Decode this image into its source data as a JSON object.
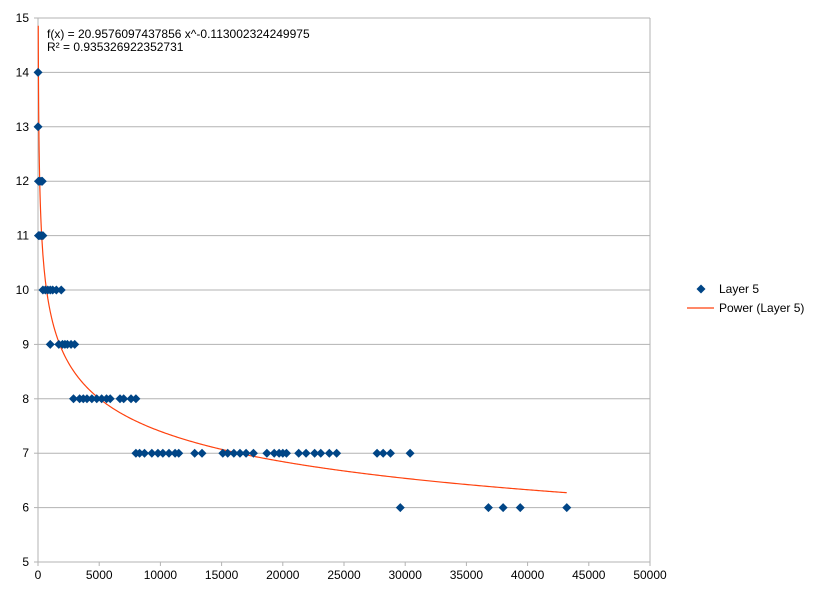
{
  "chart_data": {
    "type": "scatter",
    "xlim": [
      0,
      50000
    ],
    "ylim": [
      5,
      15
    ],
    "x_ticks": [
      0,
      5000,
      10000,
      15000,
      20000,
      25000,
      30000,
      35000,
      40000,
      45000,
      50000
    ],
    "y_ticks": [
      5,
      6,
      7,
      8,
      9,
      10,
      11,
      12,
      13,
      14,
      15
    ],
    "grid": true,
    "legend_position": "right",
    "equation_lines": [
      "f(x) = 20.9576097437856 x^-0.113002324249975",
      "R² = 0.935326922352731"
    ],
    "series": [
      {
        "name": "Layer 5",
        "marker": "diamond",
        "color": "#004586",
        "points": [
          [
            5,
            14
          ],
          [
            5,
            13
          ],
          [
            40,
            12
          ],
          [
            150,
            12
          ],
          [
            260,
            12
          ],
          [
            350,
            12
          ],
          [
            40,
            11
          ],
          [
            150,
            11
          ],
          [
            260,
            11
          ],
          [
            400,
            11
          ],
          [
            400,
            10
          ],
          [
            600,
            10
          ],
          [
            800,
            10
          ],
          [
            1000,
            10
          ],
          [
            1200,
            10
          ],
          [
            1500,
            10
          ],
          [
            1900,
            10
          ],
          [
            1000,
            9
          ],
          [
            1700,
            9
          ],
          [
            2000,
            9
          ],
          [
            2200,
            9
          ],
          [
            2400,
            9
          ],
          [
            2700,
            9
          ],
          [
            3000,
            9
          ],
          [
            2900,
            8
          ],
          [
            3400,
            8
          ],
          [
            3700,
            8
          ],
          [
            4000,
            8
          ],
          [
            4400,
            8
          ],
          [
            4800,
            8
          ],
          [
            5200,
            8
          ],
          [
            5600,
            8
          ],
          [
            5900,
            8
          ],
          [
            6700,
            8
          ],
          [
            7000,
            8
          ],
          [
            7600,
            8
          ],
          [
            8000,
            8
          ],
          [
            8000,
            7
          ],
          [
            8300,
            7
          ],
          [
            8700,
            7
          ],
          [
            9300,
            7
          ],
          [
            9800,
            7
          ],
          [
            10200,
            7
          ],
          [
            10700,
            7
          ],
          [
            11200,
            7
          ],
          [
            11500,
            7
          ],
          [
            12800,
            7
          ],
          [
            13400,
            7
          ],
          [
            15100,
            7
          ],
          [
            15500,
            7
          ],
          [
            16000,
            7
          ],
          [
            16500,
            7
          ],
          [
            17000,
            7
          ],
          [
            17600,
            7
          ],
          [
            18700,
            7
          ],
          [
            19300,
            7
          ],
          [
            19700,
            7
          ],
          [
            20000,
            7
          ],
          [
            20300,
            7
          ],
          [
            21300,
            7
          ],
          [
            21900,
            7
          ],
          [
            22600,
            7
          ],
          [
            23100,
            7
          ],
          [
            23800,
            7
          ],
          [
            24400,
            7
          ],
          [
            27700,
            7
          ],
          [
            28200,
            7
          ],
          [
            28800,
            7
          ],
          [
            30400,
            7
          ],
          [
            29600,
            6
          ],
          [
            36800,
            6
          ],
          [
            38000,
            6
          ],
          [
            39400,
            6
          ],
          [
            43200,
            6
          ]
        ]
      },
      {
        "name": "Power (Layer 5)",
        "type": "trendline",
        "color": "#ff420e",
        "function": "power",
        "a": 20.9576097437856,
        "b": -0.113002324249975,
        "x_range": [
          5,
          43200
        ]
      }
    ]
  }
}
